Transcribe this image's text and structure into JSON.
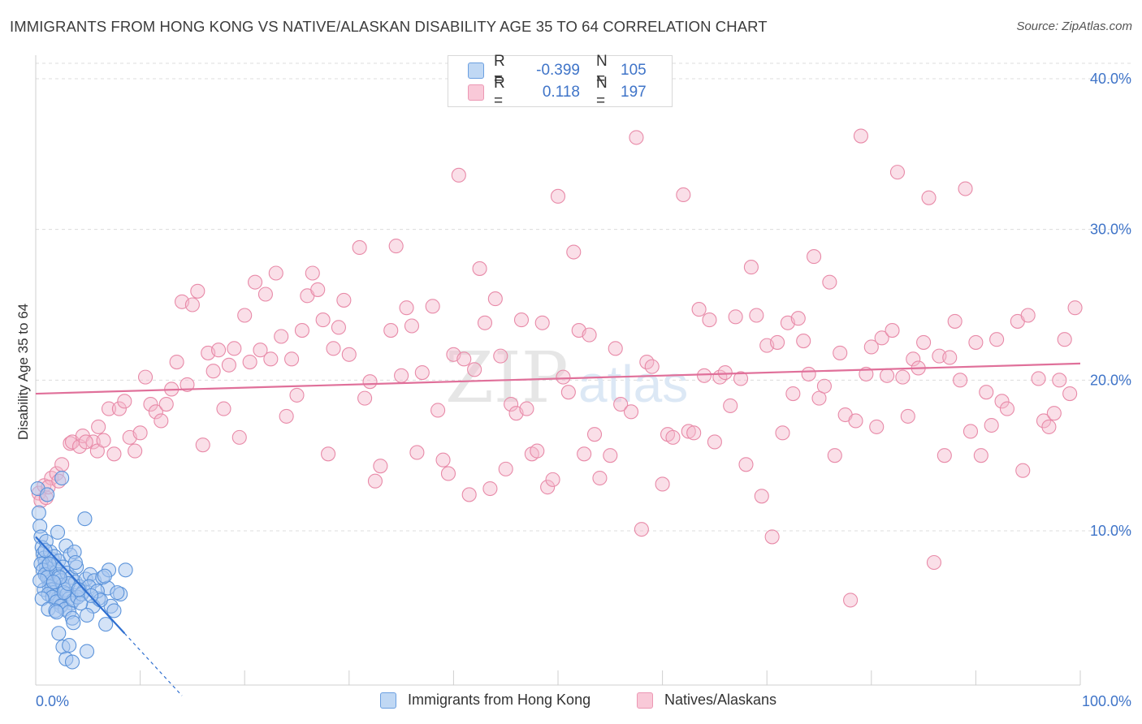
{
  "header": {
    "title": "IMMIGRANTS FROM HONG KONG VS NATIVE/ALASKAN DISABILITY AGE 35 TO 64 CORRELATION CHART",
    "source": "Source: ZipAtlas.com"
  },
  "legend": {
    "rows": [
      {
        "r_label": "R =",
        "r_value": "-0.399",
        "n_label": "N =",
        "n_value": "105"
      },
      {
        "r_label": "R =",
        "r_value": "0.118",
        "n_label": "N =",
        "n_value": "197"
      }
    ]
  },
  "watermark": {
    "zip": "ZIP",
    "atlas": "atlas"
  },
  "colors": {
    "blue_fill": "#a9c8ef",
    "blue_stroke": "#5b93da",
    "blue_line": "#2f6fd0",
    "pink_fill": "#f5b8cb",
    "pink_stroke": "#e88aa8",
    "pink_line": "#e0709a",
    "grid": "#dcdcdc",
    "tick_text": "#3f74c8"
  },
  "chart_data": {
    "type": "scatter",
    "title": "IMMIGRANTS FROM HONG KONG VS NATIVE/ALASKAN DISABILITY AGE 35 TO 64 CORRELATION CHART",
    "xlabel": "",
    "ylabel": "Disability Age 35 to 64",
    "xlim": [
      0,
      100
    ],
    "ylim": [
      0,
      42
    ],
    "x_tick_labels": [
      "0.0%",
      "100.0%"
    ],
    "y_ticks": [
      10,
      20,
      30,
      40
    ],
    "y_tick_labels": [
      "10.0%",
      "20.0%",
      "30.0%",
      "40.0%"
    ],
    "series": [
      {
        "name": "Immigrants from Hong Kong",
        "color": "blue",
        "r": -0.399,
        "n": 105,
        "trend": {
          "x0": 0,
          "y0": 9.6,
          "x1": 8.5,
          "y1": 3.2,
          "dash_to_x": 14
        },
        "points": [
          [
            0.2,
            12.8
          ],
          [
            0.3,
            11.2
          ],
          [
            0.4,
            10.3
          ],
          [
            0.5,
            9.6
          ],
          [
            0.6,
            8.9
          ],
          [
            0.7,
            8.5
          ],
          [
            0.8,
            8.2
          ],
          [
            0.9,
            7.9
          ],
          [
            1.0,
            7.6
          ],
          [
            1.1,
            7.3
          ],
          [
            1.2,
            7.0
          ],
          [
            1.3,
            6.8
          ],
          [
            1.4,
            6.6
          ],
          [
            1.5,
            6.4
          ],
          [
            0.5,
            7.8
          ],
          [
            0.7,
            7.4
          ],
          [
            0.9,
            7.1
          ],
          [
            1.1,
            6.9
          ],
          [
            1.3,
            6.3
          ],
          [
            1.5,
            6.1
          ],
          [
            1.7,
            5.9
          ],
          [
            1.9,
            5.7
          ],
          [
            2.1,
            5.5
          ],
          [
            2.3,
            5.3
          ],
          [
            2.5,
            5.1
          ],
          [
            1.6,
            8.1
          ],
          [
            1.8,
            7.7
          ],
          [
            2.0,
            7.3
          ],
          [
            2.2,
            7.0
          ],
          [
            2.4,
            6.7
          ],
          [
            2.6,
            6.4
          ],
          [
            2.8,
            6.1
          ],
          [
            3.0,
            5.8
          ],
          [
            3.2,
            5.5
          ],
          [
            3.4,
            5.2
          ],
          [
            1.0,
            9.3
          ],
          [
            1.4,
            8.6
          ],
          [
            1.8,
            8.3
          ],
          [
            2.2,
            8.0
          ],
          [
            2.6,
            7.6
          ],
          [
            3.0,
            7.2
          ],
          [
            3.4,
            6.9
          ],
          [
            3.8,
            6.6
          ],
          [
            4.2,
            6.3
          ],
          [
            4.6,
            6.0
          ],
          [
            0.8,
            6.1
          ],
          [
            1.2,
            5.8
          ],
          [
            1.6,
            5.6
          ],
          [
            2.0,
            5.3
          ],
          [
            2.4,
            5.0
          ],
          [
            2.8,
            4.8
          ],
          [
            3.2,
            4.6
          ],
          [
            3.6,
            5.4
          ],
          [
            4.0,
            5.6
          ],
          [
            4.4,
            5.8
          ],
          [
            2.1,
            9.9
          ],
          [
            2.9,
            9.0
          ],
          [
            3.3,
            8.4
          ],
          [
            3.7,
            8.6
          ],
          [
            4.8,
            6.8
          ],
          [
            5.2,
            7.1
          ],
          [
            5.6,
            6.7
          ],
          [
            6.0,
            5.5
          ],
          [
            6.4,
            6.9
          ],
          [
            6.9,
            6.2
          ],
          [
            7.2,
            5.0
          ],
          [
            5.5,
            5.0
          ],
          [
            4.9,
            4.4
          ],
          [
            3.5,
            4.2
          ],
          [
            6.7,
            3.8
          ],
          [
            2.2,
            3.2
          ],
          [
            2.6,
            2.3
          ],
          [
            7.5,
            4.7
          ],
          [
            8.1,
            5.8
          ],
          [
            8.6,
            7.4
          ],
          [
            7.0,
            7.4
          ],
          [
            4.7,
            10.8
          ],
          [
            2.5,
            13.5
          ],
          [
            1.1,
            12.4
          ],
          [
            0.4,
            6.7
          ],
          [
            0.6,
            5.5
          ],
          [
            1.2,
            4.8
          ],
          [
            1.9,
            4.7
          ],
          [
            2.7,
            5.9
          ],
          [
            3.1,
            6.5
          ],
          [
            3.9,
            7.6
          ],
          [
            4.3,
            5.2
          ],
          [
            5.1,
            6.3
          ],
          [
            5.9,
            6.0
          ],
          [
            6.2,
            5.4
          ],
          [
            2.3,
            6.9
          ],
          [
            1.7,
            6.6
          ],
          [
            2.9,
            1.5
          ],
          [
            3.5,
            1.3
          ],
          [
            4.9,
            2.0
          ],
          [
            3.2,
            2.4
          ],
          [
            1.3,
            7.8
          ],
          [
            0.9,
            8.7
          ],
          [
            2.0,
            4.6
          ],
          [
            3.6,
            3.9
          ],
          [
            4.1,
            6.1
          ],
          [
            5.3,
            5.7
          ],
          [
            6.6,
            7.0
          ],
          [
            7.8,
            5.9
          ],
          [
            3.8,
            7.9
          ]
        ]
      },
      {
        "name": "Natives/Alaskans",
        "color": "pink",
        "r": 0.118,
        "n": 197,
        "trend": {
          "x0": 0,
          "y0": 19.1,
          "x1": 100,
          "y1": 21.1
        },
        "points": [
          [
            0.3,
            12.5
          ],
          [
            0.5,
            12.0
          ],
          [
            0.8,
            13.0
          ],
          [
            1.0,
            12.2
          ],
          [
            1.5,
            13.5
          ],
          [
            2.0,
            13.8
          ],
          [
            2.5,
            14.4
          ],
          [
            3.3,
            15.8
          ],
          [
            3.5,
            15.9
          ],
          [
            4.2,
            15.6
          ],
          [
            4.5,
            16.3
          ],
          [
            5.5,
            15.9
          ],
          [
            5.9,
            15.3
          ],
          [
            6.0,
            16.9
          ],
          [
            7.0,
            18.1
          ],
          [
            7.5,
            15.1
          ],
          [
            8.0,
            18.1
          ],
          [
            8.5,
            18.6
          ],
          [
            9.0,
            16.2
          ],
          [
            9.5,
            15.3
          ],
          [
            10.0,
            16.5
          ],
          [
            10.5,
            20.2
          ],
          [
            11.0,
            18.4
          ],
          [
            11.5,
            17.9
          ],
          [
            12.0,
            17.3
          ],
          [
            12.5,
            18.4
          ],
          [
            13.0,
            19.4
          ],
          [
            13.5,
            21.2
          ],
          [
            14.0,
            25.2
          ],
          [
            14.5,
            19.7
          ],
          [
            15.0,
            25.0
          ],
          [
            15.5,
            25.9
          ],
          [
            16.0,
            15.7
          ],
          [
            16.5,
            21.8
          ],
          [
            17.0,
            20.6
          ],
          [
            17.5,
            22.0
          ],
          [
            18.0,
            18.1
          ],
          [
            18.5,
            21.0
          ],
          [
            19.0,
            22.1
          ],
          [
            19.5,
            16.2
          ],
          [
            20.0,
            24.3
          ],
          [
            20.5,
            21.2
          ],
          [
            21.0,
            26.5
          ],
          [
            21.5,
            22.0
          ],
          [
            22.0,
            25.7
          ],
          [
            22.5,
            21.4
          ],
          [
            23.0,
            27.1
          ],
          [
            23.5,
            22.9
          ],
          [
            24.0,
            17.6
          ],
          [
            24.5,
            21.4
          ],
          [
            25.0,
            19.0
          ],
          [
            25.5,
            23.3
          ],
          [
            26.0,
            25.6
          ],
          [
            26.5,
            27.1
          ],
          [
            27.0,
            26.0
          ],
          [
            27.5,
            24.0
          ],
          [
            28.0,
            15.1
          ],
          [
            28.5,
            22.1
          ],
          [
            29.0,
            23.5
          ],
          [
            29.5,
            25.3
          ],
          [
            30.0,
            21.7
          ],
          [
            31.0,
            28.8
          ],
          [
            31.5,
            18.8
          ],
          [
            32.0,
            19.9
          ],
          [
            32.5,
            13.3
          ],
          [
            33.0,
            14.3
          ],
          [
            34.0,
            23.3
          ],
          [
            34.5,
            28.9
          ],
          [
            35.0,
            20.3
          ],
          [
            35.5,
            24.8
          ],
          [
            36.0,
            23.6
          ],
          [
            36.5,
            15.2
          ],
          [
            37.0,
            20.5
          ],
          [
            38.0,
            24.9
          ],
          [
            38.5,
            18.0
          ],
          [
            39.0,
            14.7
          ],
          [
            39.5,
            13.8
          ],
          [
            40.0,
            21.7
          ],
          [
            40.5,
            33.6
          ],
          [
            41.0,
            21.4
          ],
          [
            41.5,
            12.4
          ],
          [
            42.0,
            20.7
          ],
          [
            42.5,
            27.4
          ],
          [
            43.0,
            23.8
          ],
          [
            43.5,
            12.8
          ],
          [
            44.0,
            25.4
          ],
          [
            44.5,
            21.6
          ],
          [
            45.0,
            14.1
          ],
          [
            45.5,
            18.4
          ],
          [
            46.0,
            17.8
          ],
          [
            46.5,
            24.0
          ],
          [
            47.0,
            18.1
          ],
          [
            47.5,
            15.1
          ],
          [
            48.0,
            15.3
          ],
          [
            48.5,
            23.8
          ],
          [
            49.0,
            12.9
          ],
          [
            49.5,
            13.4
          ],
          [
            50.0,
            32.2
          ],
          [
            50.5,
            20.2
          ],
          [
            51.0,
            19.2
          ],
          [
            51.5,
            28.5
          ],
          [
            52.0,
            23.3
          ],
          [
            52.5,
            15.1
          ],
          [
            53.0,
            23.0
          ],
          [
            53.5,
            16.4
          ],
          [
            54.0,
            13.5
          ],
          [
            55.0,
            15.0
          ],
          [
            55.5,
            22.1
          ],
          [
            56.0,
            18.4
          ],
          [
            57.0,
            17.9
          ],
          [
            57.5,
            36.1
          ],
          [
            58.0,
            10.1
          ],
          [
            58.5,
            21.2
          ],
          [
            59.0,
            20.9
          ],
          [
            60.0,
            13.1
          ],
          [
            60.5,
            16.4
          ],
          [
            61.0,
            16.2
          ],
          [
            62.0,
            32.3
          ],
          [
            62.5,
            16.6
          ],
          [
            63.0,
            16.5
          ],
          [
            63.5,
            24.7
          ],
          [
            64.0,
            20.3
          ],
          [
            64.5,
            24.0
          ],
          [
            65.0,
            15.9
          ],
          [
            65.5,
            20.2
          ],
          [
            66.0,
            20.5
          ],
          [
            66.5,
            18.3
          ],
          [
            67.0,
            24.2
          ],
          [
            67.5,
            20.1
          ],
          [
            68.0,
            14.4
          ],
          [
            68.5,
            27.5
          ],
          [
            69.0,
            24.3
          ],
          [
            69.5,
            12.3
          ],
          [
            70.0,
            22.3
          ],
          [
            70.5,
            9.6
          ],
          [
            71.0,
            22.5
          ],
          [
            71.5,
            16.5
          ],
          [
            72.0,
            23.8
          ],
          [
            72.5,
            19.1
          ],
          [
            73.0,
            24.1
          ],
          [
            73.5,
            22.6
          ],
          [
            74.0,
            20.4
          ],
          [
            74.5,
            28.2
          ],
          [
            75.0,
            18.8
          ],
          [
            75.5,
            19.6
          ],
          [
            76.0,
            26.5
          ],
          [
            76.5,
            15.0
          ],
          [
            77.0,
            21.8
          ],
          [
            77.5,
            17.7
          ],
          [
            78.0,
            5.4
          ],
          [
            78.5,
            17.3
          ],
          [
            79.0,
            36.2
          ],
          [
            79.5,
            20.4
          ],
          [
            80.0,
            22.2
          ],
          [
            80.5,
            16.9
          ],
          [
            81.0,
            22.8
          ],
          [
            81.5,
            20.3
          ],
          [
            82.0,
            23.3
          ],
          [
            82.5,
            33.8
          ],
          [
            83.0,
            20.2
          ],
          [
            83.5,
            17.6
          ],
          [
            84.0,
            21.4
          ],
          [
            84.5,
            20.8
          ],
          [
            85.0,
            22.5
          ],
          [
            85.5,
            32.1
          ],
          [
            86.0,
            7.9
          ],
          [
            86.5,
            21.6
          ],
          [
            87.0,
            15.0
          ],
          [
            87.5,
            21.5
          ],
          [
            88.0,
            23.9
          ],
          [
            88.5,
            20.0
          ],
          [
            89.0,
            32.7
          ],
          [
            89.5,
            16.6
          ],
          [
            90.0,
            22.5
          ],
          [
            90.5,
            15.0
          ],
          [
            91.0,
            19.2
          ],
          [
            91.5,
            17.0
          ],
          [
            92.0,
            22.7
          ],
          [
            92.5,
            18.6
          ],
          [
            93.0,
            18.1
          ],
          [
            94.0,
            23.9
          ],
          [
            94.5,
            14.0
          ],
          [
            95.0,
            24.3
          ],
          [
            96.0,
            20.1
          ],
          [
            96.5,
            17.3
          ],
          [
            97.0,
            16.9
          ],
          [
            97.5,
            17.8
          ],
          [
            98.0,
            20.0
          ],
          [
            98.5,
            22.7
          ],
          [
            99.0,
            19.1
          ],
          [
            99.5,
            24.8
          ],
          [
            1.2,
            12.9
          ],
          [
            2.2,
            13.3
          ],
          [
            4.8,
            15.9
          ],
          [
            6.5,
            16.0
          ]
        ]
      }
    ]
  },
  "bottom_legend": {
    "items": [
      {
        "label": "Immigrants from Hong Kong"
      },
      {
        "label": "Natives/Alaskans"
      }
    ]
  }
}
